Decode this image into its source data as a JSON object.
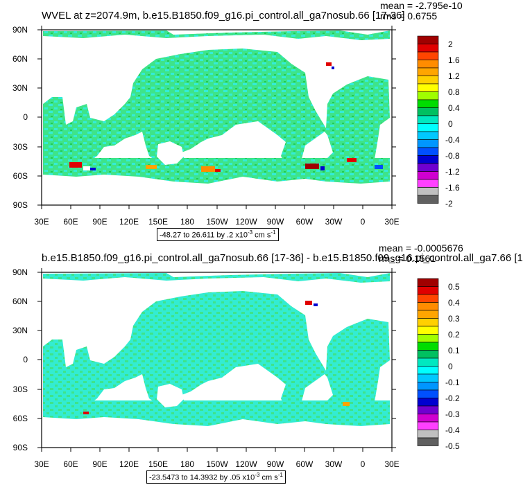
{
  "panels": [
    {
      "title": "WVEL at z=2074.9m, b.e15.B1850.f09_g16.pi_control.all_ga7nosub.66 [17-36]",
      "mean_text": "mean = -2.795e-10",
      "rms_text": "rms = 0.6755",
      "lat_labels": [
        "90N",
        "60N",
        "30N",
        "0",
        "30S",
        "60S",
        "90S"
      ],
      "lon_labels": [
        "30E",
        "60E",
        "90E",
        "120E",
        "150E",
        "180",
        "150W",
        "120W",
        "90W",
        "60W",
        "30W",
        "0",
        "30E"
      ],
      "range_prefix": "-48.27 to 26.611 by .2 x10",
      "range_exp": "-3",
      "range_unit": " cm s",
      "range_unit_exp": "-1",
      "colorbar_labels": [
        "2",
        "1.6",
        "1.2",
        "0.8",
        "0.4",
        "0",
        "-0.4",
        "-0.8",
        "-1.2",
        "-1.6",
        "-2"
      ]
    },
    {
      "title": "b.e15.B1850.f09_g16.pi_control.all_ga7nosub.66 [17-36] - b.e15.B1850.f09_g16.pi_control.all_ga7.66 [1",
      "mean_text": "mean = -0.0005676",
      "rms_text": "rms = 0.1561",
      "lat_labels": [
        "90N",
        "60N",
        "30N",
        "0",
        "30S",
        "60S",
        "90S"
      ],
      "lon_labels": [
        "30E",
        "60E",
        "90E",
        "120E",
        "150E",
        "180",
        "150W",
        "120W",
        "90W",
        "60W",
        "30W",
        "0",
        "30E"
      ],
      "range_prefix": "-23.5473 to 14.3932 by .05 x10",
      "range_exp": "-3",
      "range_unit": " cm s",
      "range_unit_exp": "-1",
      "colorbar_labels": [
        "0.5",
        "0.4",
        "0.3",
        "0.2",
        "0.1",
        "0",
        "-0.1",
        "-0.2",
        "-0.3",
        "-0.4",
        "-0.5"
      ]
    }
  ],
  "colors": {
    "palette": [
      "#a00000",
      "#e00000",
      "#ff4500",
      "#ff8c00",
      "#ffa500",
      "#ffd000",
      "#ffff00",
      "#a0ff00",
      "#00dd00",
      "#00c060",
      "#00e8c0",
      "#00ffff",
      "#00c8ff",
      "#0096ff",
      "#0050ff",
      "#0000d0",
      "#7000d0",
      "#d000d0",
      "#ff40ff",
      "#c0c0c0",
      "#606060"
    ],
    "ocean_green": "#39e27a",
    "ocean_cyan": "#36ecd2"
  }
}
